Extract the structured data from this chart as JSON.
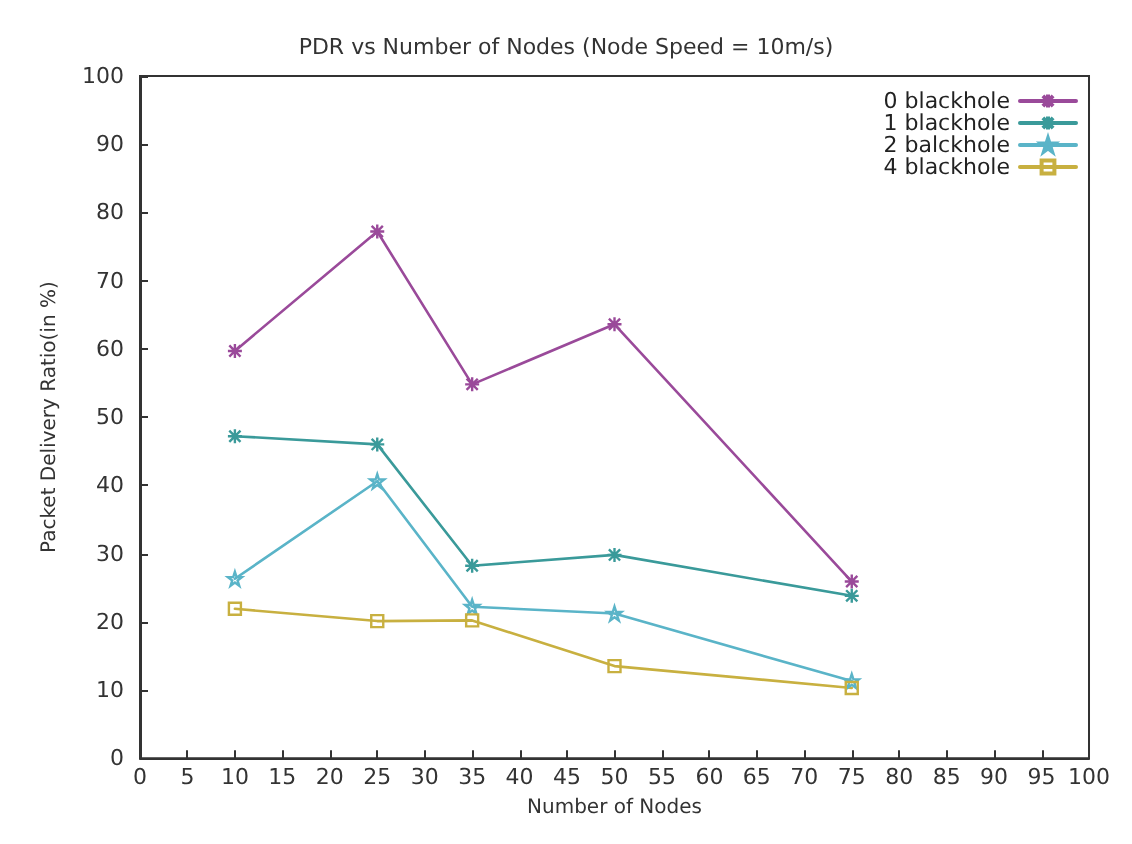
{
  "chart_data": {
    "type": "line",
    "title": "PDR vs Number of Nodes (Node Speed = 10m/s)",
    "xlabel": "Number of Nodes",
    "ylabel": "Packet Delivery Ratio(in %)",
    "x": [
      10,
      25,
      35,
      50,
      75
    ],
    "series": [
      {
        "name": "0 blackhole",
        "color": "#9a4a9a",
        "marker": "cross",
        "values": [
          59.7,
          77.2,
          54.8,
          63.6,
          25.9
        ]
      },
      {
        "name": "1 blackhole",
        "color": "#3a9a9a",
        "marker": "cross",
        "values": [
          47.2,
          46.0,
          28.2,
          29.8,
          23.8
        ]
      },
      {
        "name": "2 balckhole",
        "color": "#5ab4c8",
        "marker": "star",
        "values": [
          26.3,
          40.6,
          22.2,
          21.2,
          11.3
        ]
      },
      {
        "name": "4 blackhole",
        "color": "#c8b040",
        "marker": "square",
        "values": [
          21.9,
          20.1,
          20.2,
          13.5,
          10.3
        ]
      }
    ],
    "xlim": [
      0,
      100
    ],
    "xticks": [
      0,
      5,
      10,
      15,
      20,
      25,
      30,
      35,
      40,
      45,
      50,
      55,
      60,
      65,
      70,
      75,
      80,
      85,
      90,
      95,
      100
    ],
    "ylim": [
      0,
      100
    ],
    "yticks": [
      0,
      10,
      20,
      30,
      40,
      50,
      60,
      70,
      80,
      90,
      100
    ],
    "grid": false,
    "legend": "top right",
    "line_style": "solid"
  }
}
